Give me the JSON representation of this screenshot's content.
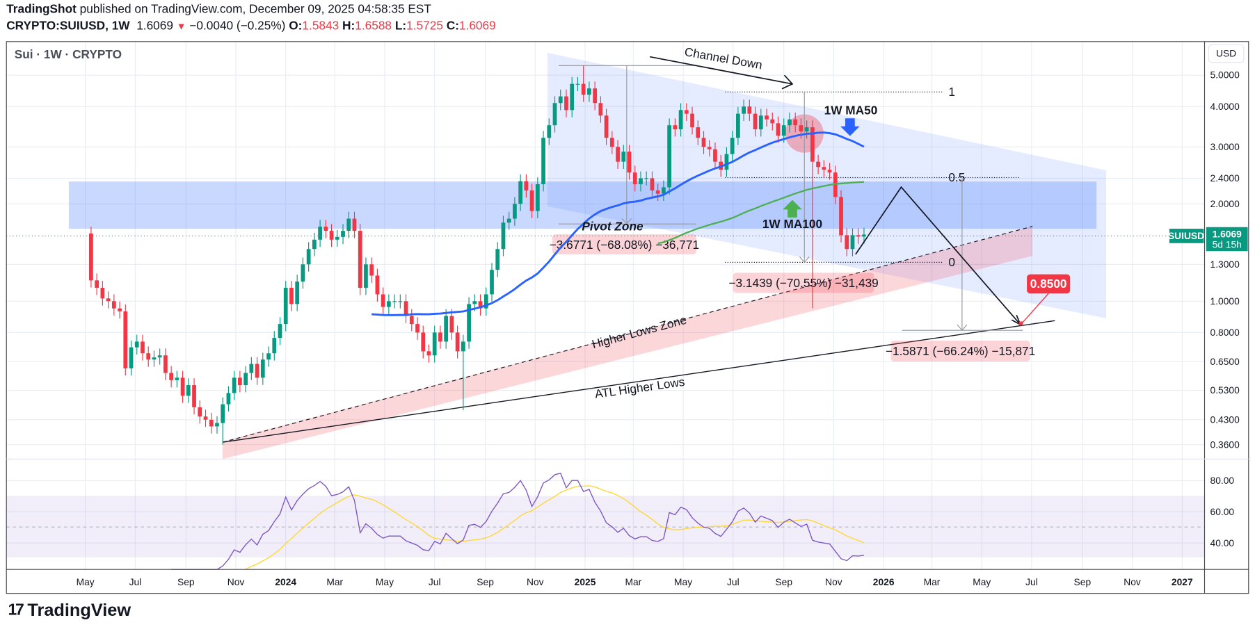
{
  "header": {
    "publisher": "TradingShot",
    "published_text": "published on TradingView.com, December 09, 2025 04:58:35 EST"
  },
  "symbol_bar": {
    "symbol": "CRYPTO:SUIUSD, 1W",
    "last": "1.6069",
    "change": "−0.0040 (−0.25%)",
    "o_label": "O:",
    "o": "1.5843",
    "h_label": "H:",
    "h": "1.6588",
    "l_label": "L:",
    "l": "1.5725",
    "c_label": "C:",
    "c": "1.6069"
  },
  "legend": "Sui · 1W · CRYPTO",
  "price_axis": {
    "currency": "USD",
    "ticks": [
      "5.0000",
      "4.0000",
      "3.0000",
      "2.4000",
      "2.0000",
      "1.3000",
      "1.0000",
      "0.8000",
      "0.6500",
      "0.5300",
      "0.4300",
      "0.3600"
    ],
    "current_price": "1.6069",
    "countdown": "5d 15h",
    "symbol_tag": "SUIUSD"
  },
  "rsi_axis": {
    "ticks": [
      "80.00",
      "60.00",
      "40.00"
    ]
  },
  "time_axis": {
    "labels": [
      "May",
      "Jul",
      "Sep",
      "Nov",
      "2024",
      "Mar",
      "May",
      "Jul",
      "Sep",
      "Nov",
      "2025",
      "Mar",
      "May",
      "Jul",
      "Sep",
      "Nov",
      "2026",
      "Mar",
      "May",
      "Jul",
      "Sep",
      "Nov",
      "2027"
    ]
  },
  "annotations": {
    "channel_down": "Channel Down",
    "pivot_zone": "Pivot Zone",
    "higher_lows_zone": "Higher Lows Zone",
    "atl_higher_lows": "ATL Higher Lows",
    "ma50_label": "1W MA50",
    "ma100_label": "1W MA100",
    "fib_1": "1",
    "fib_05": "0.5",
    "fib_0": "0",
    "measure_1": "−3.6771 (−68.08%) −36,771",
    "measure_2": "−3.1439 (−70.55%) −31,439",
    "measure_3": "−1.5871 (−66.24%) −15,871",
    "target": "0.8500"
  },
  "colors": {
    "up": "#089981",
    "down": "#f23645",
    "ma50": "#2962ff",
    "ma100": "#4caf50",
    "rsi": "#7e57c2",
    "rsi_ma": "#fdd835",
    "zone_blue": "#2962ff",
    "zone_red": "#f23645"
  },
  "chart_data": {
    "type": "candlestick",
    "price_scale": "log",
    "interval": "1W",
    "start_week": "2023-05-08",
    "first_open": 1.62,
    "closes": [
      1.16,
      1.1,
      1.02,
      1.0,
      0.95,
      0.93,
      0.62,
      0.72,
      0.75,
      0.69,
      0.66,
      0.67,
      0.68,
      0.6,
      0.57,
      0.58,
      0.51,
      0.55,
      0.47,
      0.44,
      0.43,
      0.41,
      0.42,
      0.48,
      0.52,
      0.58,
      0.55,
      0.6,
      0.64,
      0.58,
      0.66,
      0.69,
      0.77,
      0.85,
      1.1,
      0.98,
      1.15,
      1.3,
      1.45,
      1.55,
      1.7,
      1.65,
      1.55,
      1.58,
      1.65,
      1.8,
      1.65,
      1.1,
      1.3,
      1.2,
      1.05,
      0.96,
      1.0,
      1.0,
      1.0,
      0.9,
      0.85,
      0.8,
      0.7,
      0.68,
      0.8,
      0.75,
      0.9,
      0.8,
      0.7,
      0.75,
      0.98,
      1.0,
      0.95,
      1.05,
      1.25,
      1.45,
      1.75,
      1.8,
      2.0,
      2.35,
      2.2,
      1.9,
      2.3,
      3.2,
      3.5,
      4.1,
      4.3,
      3.9,
      4.7,
      4.7,
      4.35,
      4.55,
      4.1,
      3.75,
      3.2,
      3.0,
      2.7,
      2.9,
      2.5,
      2.3,
      2.4,
      2.4,
      2.2,
      2.15,
      2.25,
      3.5,
      3.4,
      3.9,
      3.8,
      3.45,
      3.2,
      3.0,
      2.95,
      2.7,
      2.55,
      2.85,
      3.2,
      3.8,
      4.0,
      3.8,
      3.4,
      3.75,
      3.65,
      3.55,
      3.25,
      3.5,
      3.65,
      3.5,
      3.35,
      3.45,
      2.7,
      2.6,
      2.55,
      2.5,
      2.1,
      1.6,
      1.45,
      1.6,
      1.5843,
      1.6069
    ],
    "wick_extremes": [
      {
        "week": "2023-05-08",
        "high": 1.7
      },
      {
        "week": "2023-10-16",
        "low": 0.36
      },
      {
        "week": "2024-08-05",
        "low": 0.46
      },
      {
        "week": "2024-12-30",
        "high": 5.35
      },
      {
        "week": "2025-10-06",
        "low": 0.95
      }
    ],
    "indicators": {
      "moving_averages": [
        50,
        100
      ],
      "rsi_length": 14,
      "rsi_ma_length": 14
    }
  },
  "footer": {
    "brand": "TradingView",
    "logo_glyph": "17"
  }
}
